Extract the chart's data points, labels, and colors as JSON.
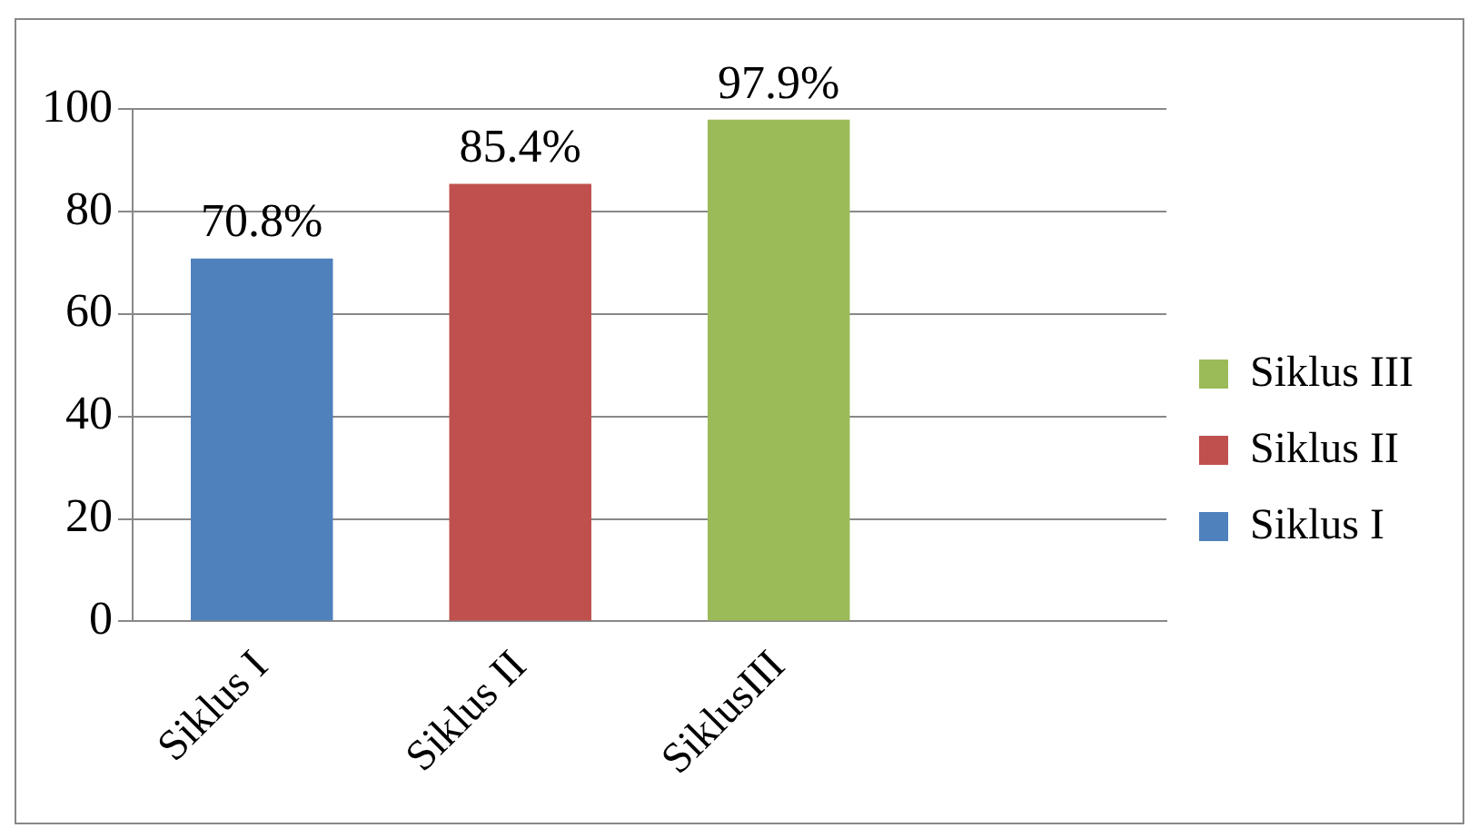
{
  "chart_data": {
    "type": "bar",
    "categories": [
      "Siklus I",
      "Siklus II",
      "SiklusIII",
      null
    ],
    "series": [
      {
        "name": "Siklus I",
        "color": "#4f81bd",
        "values": [
          70.8,
          null,
          null,
          null
        ],
        "value_labels": [
          "70.8%",
          null,
          null,
          null
        ]
      },
      {
        "name": "Siklus II",
        "color": "#c0504d",
        "values": [
          null,
          85.4,
          null,
          null
        ],
        "value_labels": [
          null,
          "85.4%",
          null,
          null
        ]
      },
      {
        "name": "Siklus III",
        "color": "#9bbb59",
        "values": [
          null,
          null,
          97.9,
          null
        ],
        "value_labels": [
          null,
          null,
          "97.9%",
          null
        ]
      }
    ],
    "ylim": [
      0,
      100
    ],
    "yticks": [
      0,
      20,
      40,
      60,
      80,
      100
    ],
    "grid": "y",
    "legend": "right"
  }
}
